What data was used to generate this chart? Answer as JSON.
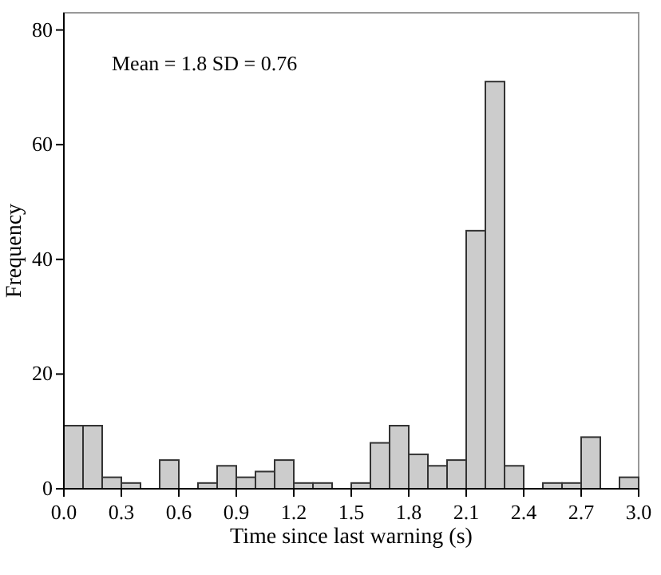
{
  "chart_data": {
    "type": "histogram",
    "xlabel": "Time since last warning (s)",
    "ylabel": "Frequency",
    "bins": [
      0,
      0.1,
      0.2,
      0.3,
      0.4,
      0.5,
      0.6,
      0.7,
      0.8,
      0.9,
      1.0,
      1.1,
      1.2,
      1.3,
      1.4,
      1.5,
      1.6,
      1.7,
      1.8,
      1.9,
      2.0,
      2.1,
      2.2,
      2.3,
      2.4,
      2.5,
      2.6,
      2.7,
      2.8,
      2.9,
      3.0
    ],
    "values": [
      11,
      11,
      2,
      1,
      0,
      5,
      0,
      1,
      4,
      2,
      3,
      5,
      1,
      1,
      0,
      1,
      8,
      11,
      6,
      4,
      5,
      45,
      71,
      4,
      0,
      1,
      1,
      9,
      0,
      2
    ],
    "color": "#cccccc",
    "xlim": [
      0,
      3.0
    ],
    "xticks": [
      {
        "value": 0,
        "label": "0.0"
      },
      {
        "value": 0.3,
        "label": "0.3"
      },
      {
        "value": 0.6,
        "label": "0.6"
      },
      {
        "value": 0.9,
        "label": "0.9"
      },
      {
        "value": 1.2,
        "label": "1.2"
      },
      {
        "value": 1.5,
        "label": "1.5"
      },
      {
        "value": 1.8,
        "label": "1.8"
      },
      {
        "value": 2.1,
        "label": "2.1"
      },
      {
        "value": 2.4,
        "label": "2.4"
      },
      {
        "value": 2.7,
        "label": "2.7"
      },
      {
        "value": 3.0,
        "label": "3.0"
      }
    ],
    "ylim": [
      0,
      83
    ],
    "yticks": [
      0,
      20,
      40,
      60,
      80
    ],
    "annotations": [
      "Mean = 1.8 SD = 0.76"
    ],
    "grid": false
  }
}
